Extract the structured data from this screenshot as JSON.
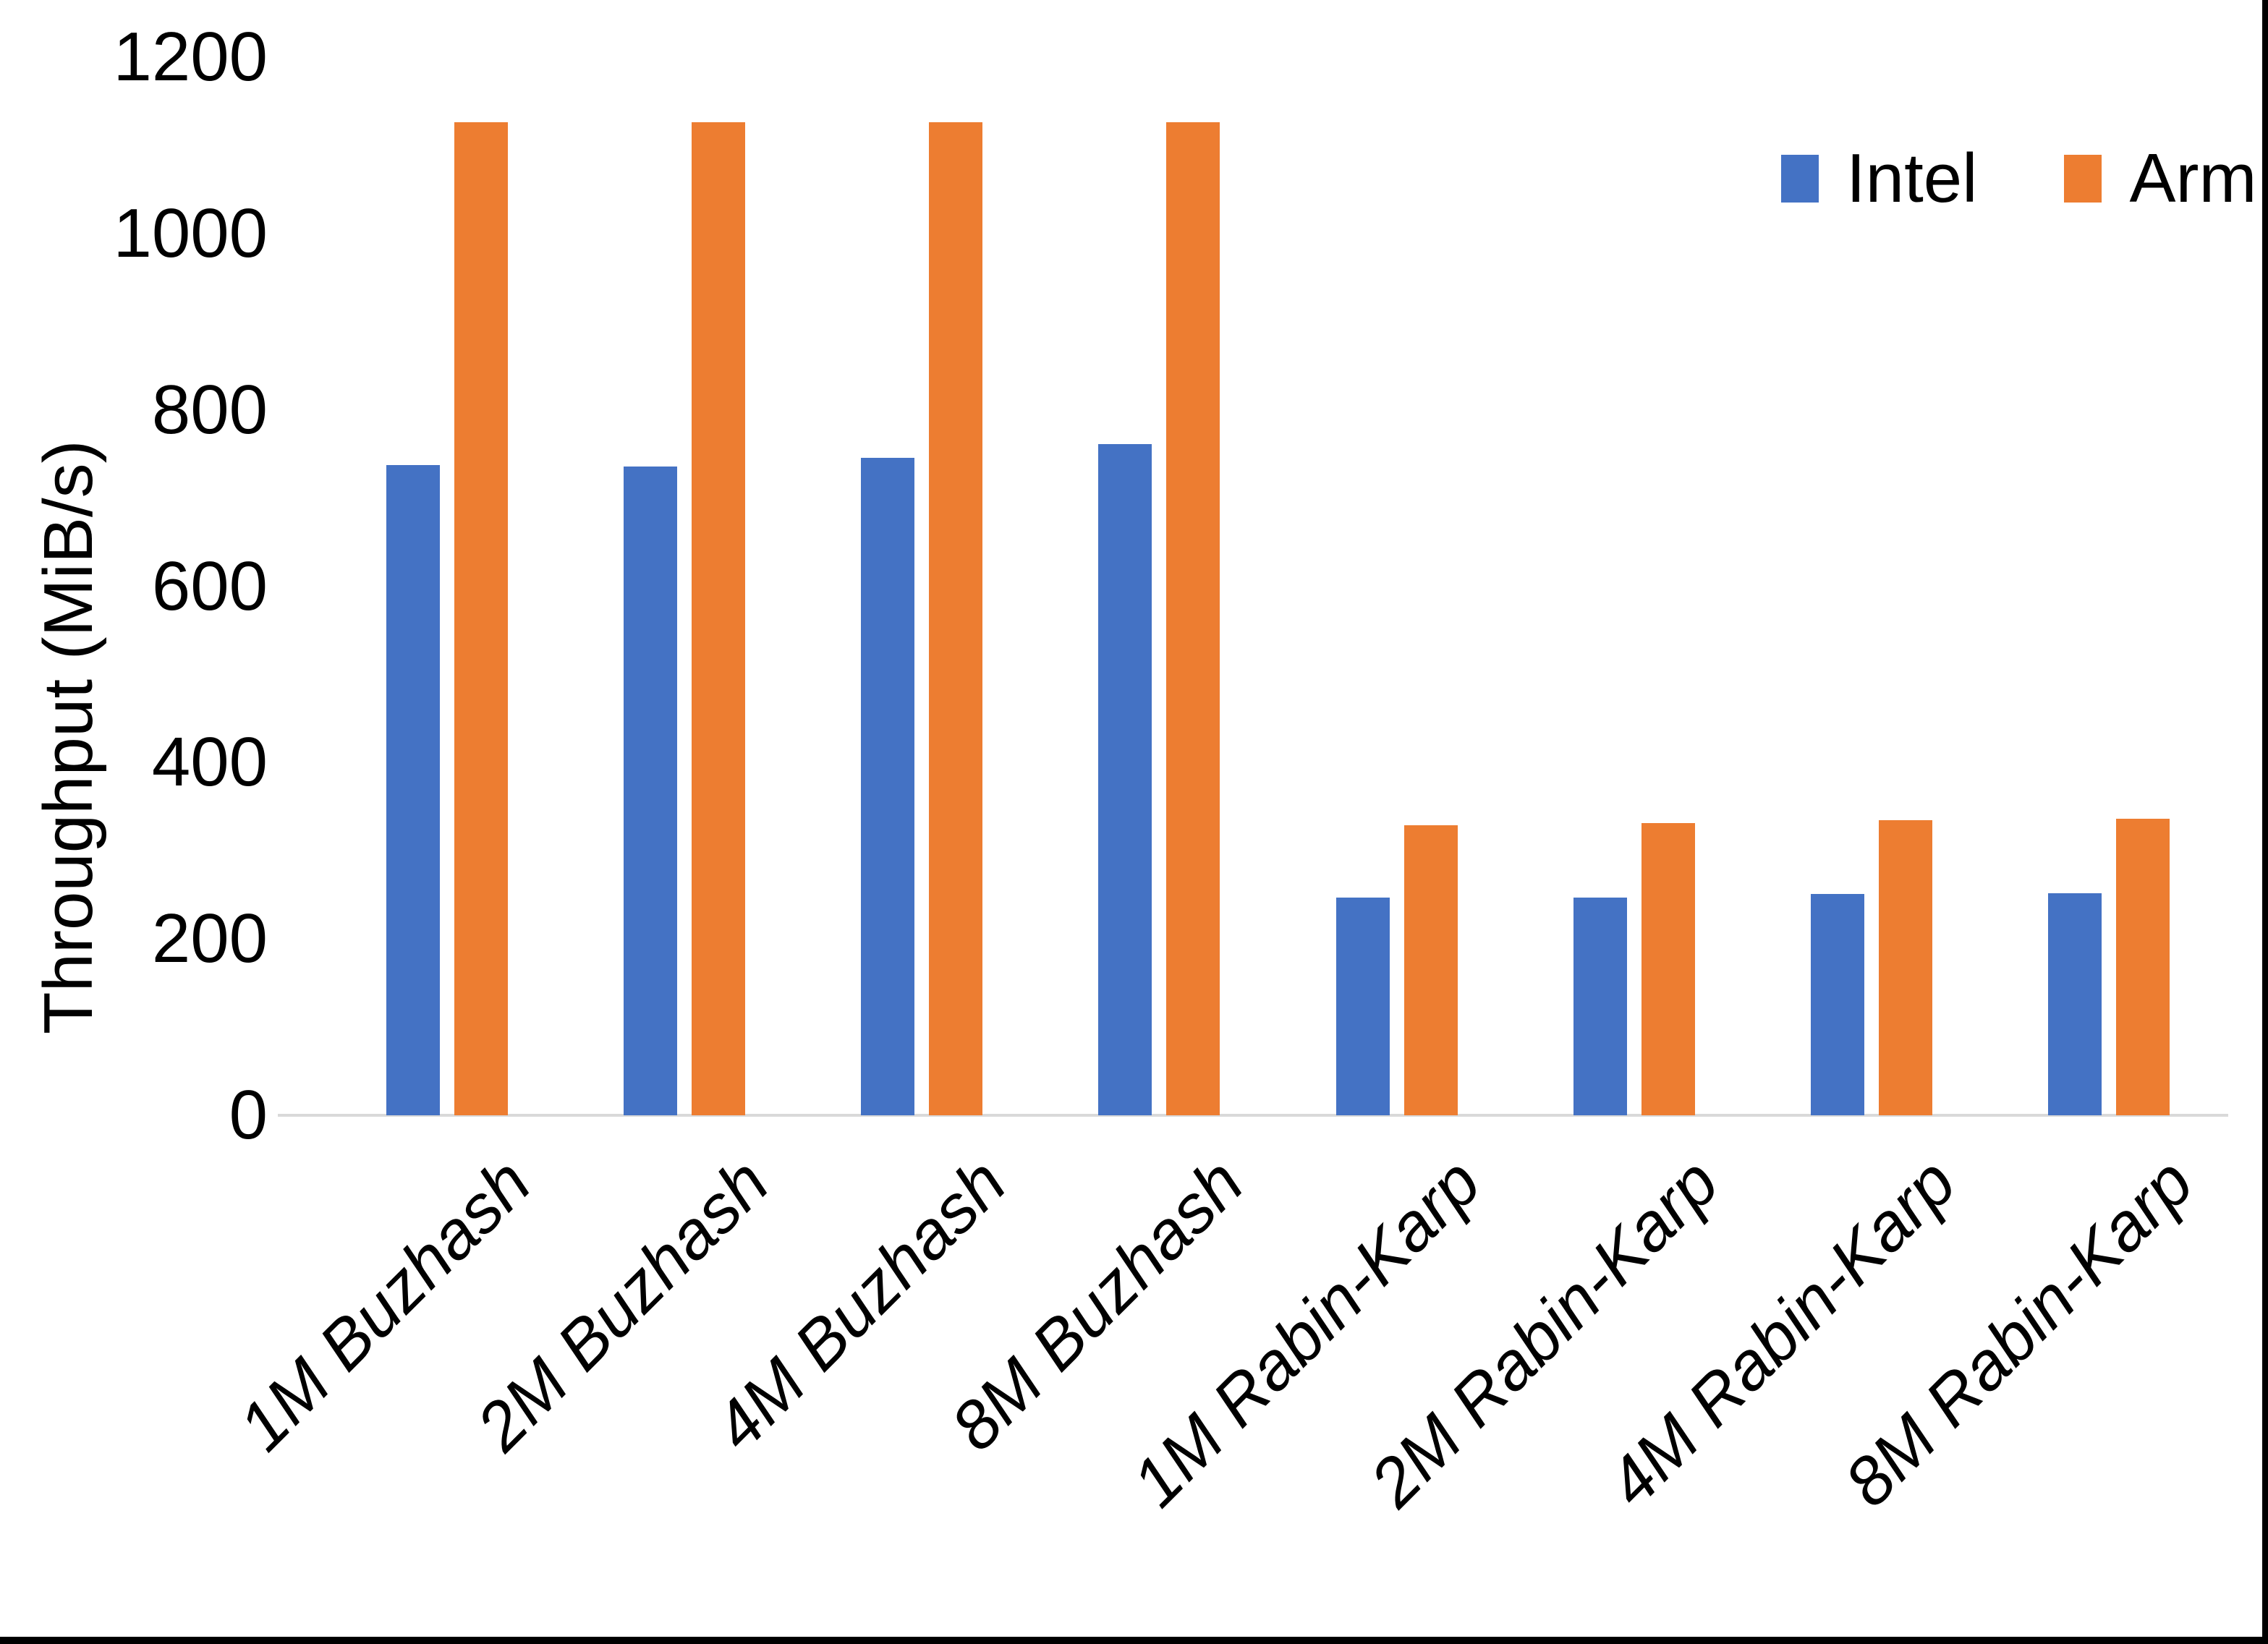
{
  "chart_data": {
    "type": "bar",
    "title": "",
    "ylabel": "Throughput (MiB/s)",
    "xlabel": "",
    "categories": [
      "1M Buzhash",
      "2M Buzhash",
      "4M Buzhash",
      "8M Buzhash",
      "1M Rabin-Karp",
      "2M Rabin-Karp",
      "4M Rabin-Karp",
      "8M Rabin-Karp"
    ],
    "series": [
      {
        "name": "Intel",
        "color": "#4472C4",
        "values": [
          737,
          736,
          746,
          761,
          247,
          247,
          251,
          252
        ]
      },
      {
        "name": "Arm",
        "color": "#ED7D31",
        "values": [
          1126,
          1126,
          1126,
          1126,
          329,
          331,
          335,
          336
        ]
      }
    ],
    "ylim": [
      0,
      1200
    ],
    "yticks": [
      0,
      200,
      400,
      600,
      800,
      1000,
      1200
    ],
    "grid": false,
    "legend_position": "top-right"
  },
  "colors": {
    "axis_line": "#d9d9d9",
    "text": "#000000",
    "screenshot_border": "#000000"
  }
}
